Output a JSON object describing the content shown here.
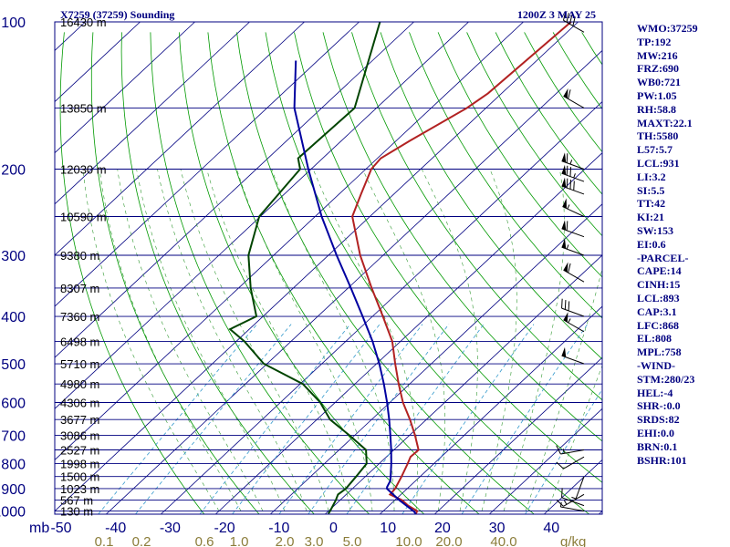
{
  "header": {
    "station": "X7259 (37259) Sounding",
    "time": "1200Z  3 MAY 25"
  },
  "chart_data": {
    "type": "line",
    "title": "X7259 (37259) Sounding",
    "subtitle": "1200Z  3 MAY 25",
    "y_axis_label": "mb",
    "x_axis_units": "g/kg",
    "pressure_ticks": [
      100,
      200,
      300,
      400,
      500,
      600,
      700,
      800,
      900,
      1000
    ],
    "temperature_ticks": [
      "-50",
      "-40",
      "-30",
      "-20",
      "-10",
      "0",
      "10",
      "20",
      "30",
      "40"
    ],
    "mixing_ratio_ticks": [
      "0.1",
      "0.2",
      "0.6",
      "1.0",
      "2.0",
      "3.0",
      "5.0",
      "10.0",
      "20.0",
      "40.0"
    ],
    "height_labels": [
      {
        "p": 100,
        "label": "16430 m"
      },
      {
        "p": 150,
        "label": "13850 m"
      },
      {
        "p": 200,
        "label": "12030 m"
      },
      {
        "p": 250,
        "label": "10590 m"
      },
      {
        "p": 300,
        "label": "9380 m"
      },
      {
        "p": 350,
        "label": "8307 m"
      },
      {
        "p": 400,
        "label": "7360 m"
      },
      {
        "p": 450,
        "label": "6498 m"
      },
      {
        "p": 500,
        "label": "5710 m"
      },
      {
        "p": 550,
        "label": "4980 m"
      },
      {
        "p": 600,
        "label": "4306 m"
      },
      {
        "p": 650,
        "label": "3677 m"
      },
      {
        "p": 700,
        "label": "3086 m"
      },
      {
        "p": 750,
        "label": "2527 m"
      },
      {
        "p": 800,
        "label": "1998 m"
      },
      {
        "p": 850,
        "label": "1500 m"
      },
      {
        "p": 900,
        "label": "1023 m"
      },
      {
        "p": 950,
        "label": "567 m"
      },
      {
        "p": 1000,
        "label": "130 m"
      }
    ],
    "series": [
      {
        "name": "temperature",
        "color": "#b22222",
        "points": [
          [
            1013,
            16.5
          ],
          [
            1000,
            16.2
          ],
          [
            975,
            13.5
          ],
          [
            950,
            11.3
          ],
          [
            925,
            8.0
          ],
          [
            900,
            7.8
          ],
          [
            850,
            6.6
          ],
          [
            800,
            5.2
          ],
          [
            775,
            4.4
          ],
          [
            750,
            4.5
          ],
          [
            700,
            1.0
          ],
          [
            650,
            -3.0
          ],
          [
            600,
            -7.6
          ],
          [
            550,
            -12.0
          ],
          [
            500,
            -16.6
          ],
          [
            450,
            -21.5
          ],
          [
            400,
            -28.1
          ],
          [
            350,
            -35.7
          ],
          [
            300,
            -44.2
          ],
          [
            250,
            -53.2
          ],
          [
            225,
            -56.0
          ],
          [
            200,
            -59.0
          ],
          [
            190,
            -59.4
          ],
          [
            175,
            -57.5
          ],
          [
            150,
            -53.5
          ],
          [
            140,
            -52.5
          ],
          [
            100,
            -51.3
          ]
        ]
      },
      {
        "name": "dewpoint",
        "color": "#004400",
        "points": [
          [
            1013,
            0.5
          ],
          [
            1000,
            0.3
          ],
          [
            950,
            -0.8
          ],
          [
            925,
            -1.5
          ],
          [
            900,
            -1.2
          ],
          [
            850,
            -1.7
          ],
          [
            800,
            -2.3
          ],
          [
            750,
            -5.1
          ],
          [
            700,
            -11.0
          ],
          [
            650,
            -17.6
          ],
          [
            600,
            -22.7
          ],
          [
            550,
            -29.5
          ],
          [
            500,
            -40.6
          ],
          [
            450,
            -48.5
          ],
          [
            425,
            -53.5
          ],
          [
            400,
            -51.2
          ],
          [
            350,
            -57.8
          ],
          [
            300,
            -64.6
          ],
          [
            250,
            -70.2
          ],
          [
            200,
            -72.0
          ],
          [
            190,
            -74.5
          ],
          [
            150,
            -74.0
          ],
          [
            100,
            -86.2
          ]
        ]
      },
      {
        "name": "parcel",
        "color": "#0000a0",
        "points": [
          [
            1013,
            16.5
          ],
          [
            1000,
            15.5
          ],
          [
            950,
            10.8
          ],
          [
            900,
            6.3
          ],
          [
            893,
            6.0
          ],
          [
            868,
            5.4
          ],
          [
            850,
            4.6
          ],
          [
            800,
            2.2
          ],
          [
            750,
            -0.5
          ],
          [
            700,
            -3.5
          ],
          [
            650,
            -6.8
          ],
          [
            600,
            -10.5
          ],
          [
            550,
            -14.7
          ],
          [
            500,
            -19.5
          ],
          [
            450,
            -25.1
          ],
          [
            400,
            -31.8
          ],
          [
            350,
            -39.5
          ],
          [
            300,
            -48.5
          ],
          [
            250,
            -58.8
          ],
          [
            200,
            -70.5
          ],
          [
            150,
            -85.0
          ],
          [
            120,
            -94.0
          ]
        ]
      }
    ],
    "winds": [
      {
        "p": 1000,
        "dir": 280,
        "spd": 5
      },
      {
        "p": 975,
        "dir": 290,
        "spd": 10
      },
      {
        "p": 925,
        "dir": 240,
        "spd": 15
      },
      {
        "p": 850,
        "dir": 200,
        "spd": 5
      },
      {
        "p": 775,
        "dir": 240,
        "spd": 10
      },
      {
        "p": 750,
        "dir": 260,
        "spd": 15
      },
      {
        "p": 500,
        "dir": 290,
        "spd": 50
      },
      {
        "p": 430,
        "dir": 300,
        "spd": 55
      },
      {
        "p": 400,
        "dir": 290,
        "spd": 30
      },
      {
        "p": 340,
        "dir": 300,
        "spd": 60
      },
      {
        "p": 300,
        "dir": 290,
        "spd": 55
      },
      {
        "p": 275,
        "dir": 290,
        "spd": 60
      },
      {
        "p": 250,
        "dir": 295,
        "spd": 55
      },
      {
        "p": 225,
        "dir": 290,
        "spd": 80
      },
      {
        "p": 212,
        "dir": 290,
        "spd": 75
      },
      {
        "p": 200,
        "dir": 290,
        "spd": 65
      },
      {
        "p": 150,
        "dir": 300,
        "spd": 60
      },
      {
        "p": 105,
        "dir": 300,
        "spd": 40
      }
    ]
  },
  "indices": [
    "WMO:37259",
    "TP:192",
    "MW:216",
    "FRZ:690",
    "WB0:721",
    "PW:1.05",
    "RH:58.8",
    "MAXT:22.1",
    "TH:5580",
    "L57:5.7",
    "LCL:931",
    "LI:3.2",
    "SI:5.5",
    "TT:42",
    "KI:21",
    "SW:153",
    "EI:0.6",
    "-PARCEL-",
    "CAPE:14",
    "CINH:15",
    "LCL:893",
    "CAP:3.1",
    "LFC:868",
    "EL:808",
    "MPL:758",
    "-WIND-",
    "STM:280/23",
    "HEL:-4",
    "SHR-:0.0",
    "SRDS:82",
    "EHI:0.0",
    "BRN:0.1",
    "BSHR:101"
  ],
  "colors": {
    "frame": "#000080",
    "isobar": "#000080",
    "isotherm": "#000080",
    "dry_adiabat": "#009900",
    "moist_adiabat": "#339933",
    "mixing_ratio": "#3399cc"
  }
}
